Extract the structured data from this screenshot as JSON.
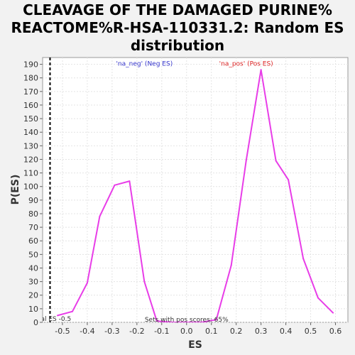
{
  "chart_data": {
    "type": "line",
    "title_lines": [
      "CLEAVAGE OF THE DAMAGED PURINE%",
      "REACTOME%R-HSA-110331.2: Random ES",
      "distribution"
    ],
    "xlabel": "ES",
    "ylabel": "P(ES)",
    "xlim": [
      -0.58,
      0.65
    ],
    "ylim": [
      0,
      195
    ],
    "x_ticks": [
      "-0.5",
      "-0.4",
      "-0.3",
      "-0.2",
      "-0.1",
      "0.0",
      "0.1",
      "0.2",
      "0.3",
      "0.4",
      "0.5",
      "0.6"
    ],
    "x_tick_values": [
      -0.5,
      -0.4,
      -0.3,
      -0.2,
      -0.1,
      0.0,
      0.1,
      0.2,
      0.3,
      0.4,
      0.5,
      0.6
    ],
    "y_ticks": [
      "0",
      "10",
      "20",
      "30",
      "40",
      "50",
      "60",
      "70",
      "80",
      "90",
      "100",
      "110",
      "120",
      "130",
      "140",
      "150",
      "160",
      "170",
      "180",
      "190"
    ],
    "y_tick_values": [
      0,
      10,
      20,
      30,
      40,
      50,
      60,
      70,
      80,
      90,
      100,
      110,
      120,
      130,
      140,
      150,
      160,
      170,
      180,
      190
    ],
    "grid": true,
    "series_color": "#e83de8",
    "series": [
      {
        "name": "",
        "x": [
          -0.52,
          -0.46,
          -0.4,
          -0.35,
          -0.29,
          -0.23,
          -0.17,
          -0.12,
          -0.06,
          0.0,
          0.06,
          0.12,
          0.18,
          0.24,
          0.3,
          0.36,
          0.41,
          0.47,
          0.53,
          0.59
        ],
        "y": [
          5,
          8,
          29,
          78,
          101,
          104,
          30,
          1,
          0,
          0,
          0,
          2,
          42,
          119,
          186,
          119,
          105,
          47,
          18,
          7
        ]
      }
    ],
    "marker_line": {
      "x": -0.55,
      "label": "al ES -0.5",
      "color": "#000000"
    },
    "annotations": [
      {
        "text": "'na_neg' (Neg ES)",
        "color": "#3333cc",
        "x": -0.17,
        "y": 189
      },
      {
        "text": "'na_pos' (Pos ES)",
        "color": "#dd2222",
        "x": 0.24,
        "y": 189
      },
      {
        "text": "Sets with pos scores: 65%",
        "color": "#333333",
        "x": 0.0,
        "y": 0.5
      }
    ]
  }
}
